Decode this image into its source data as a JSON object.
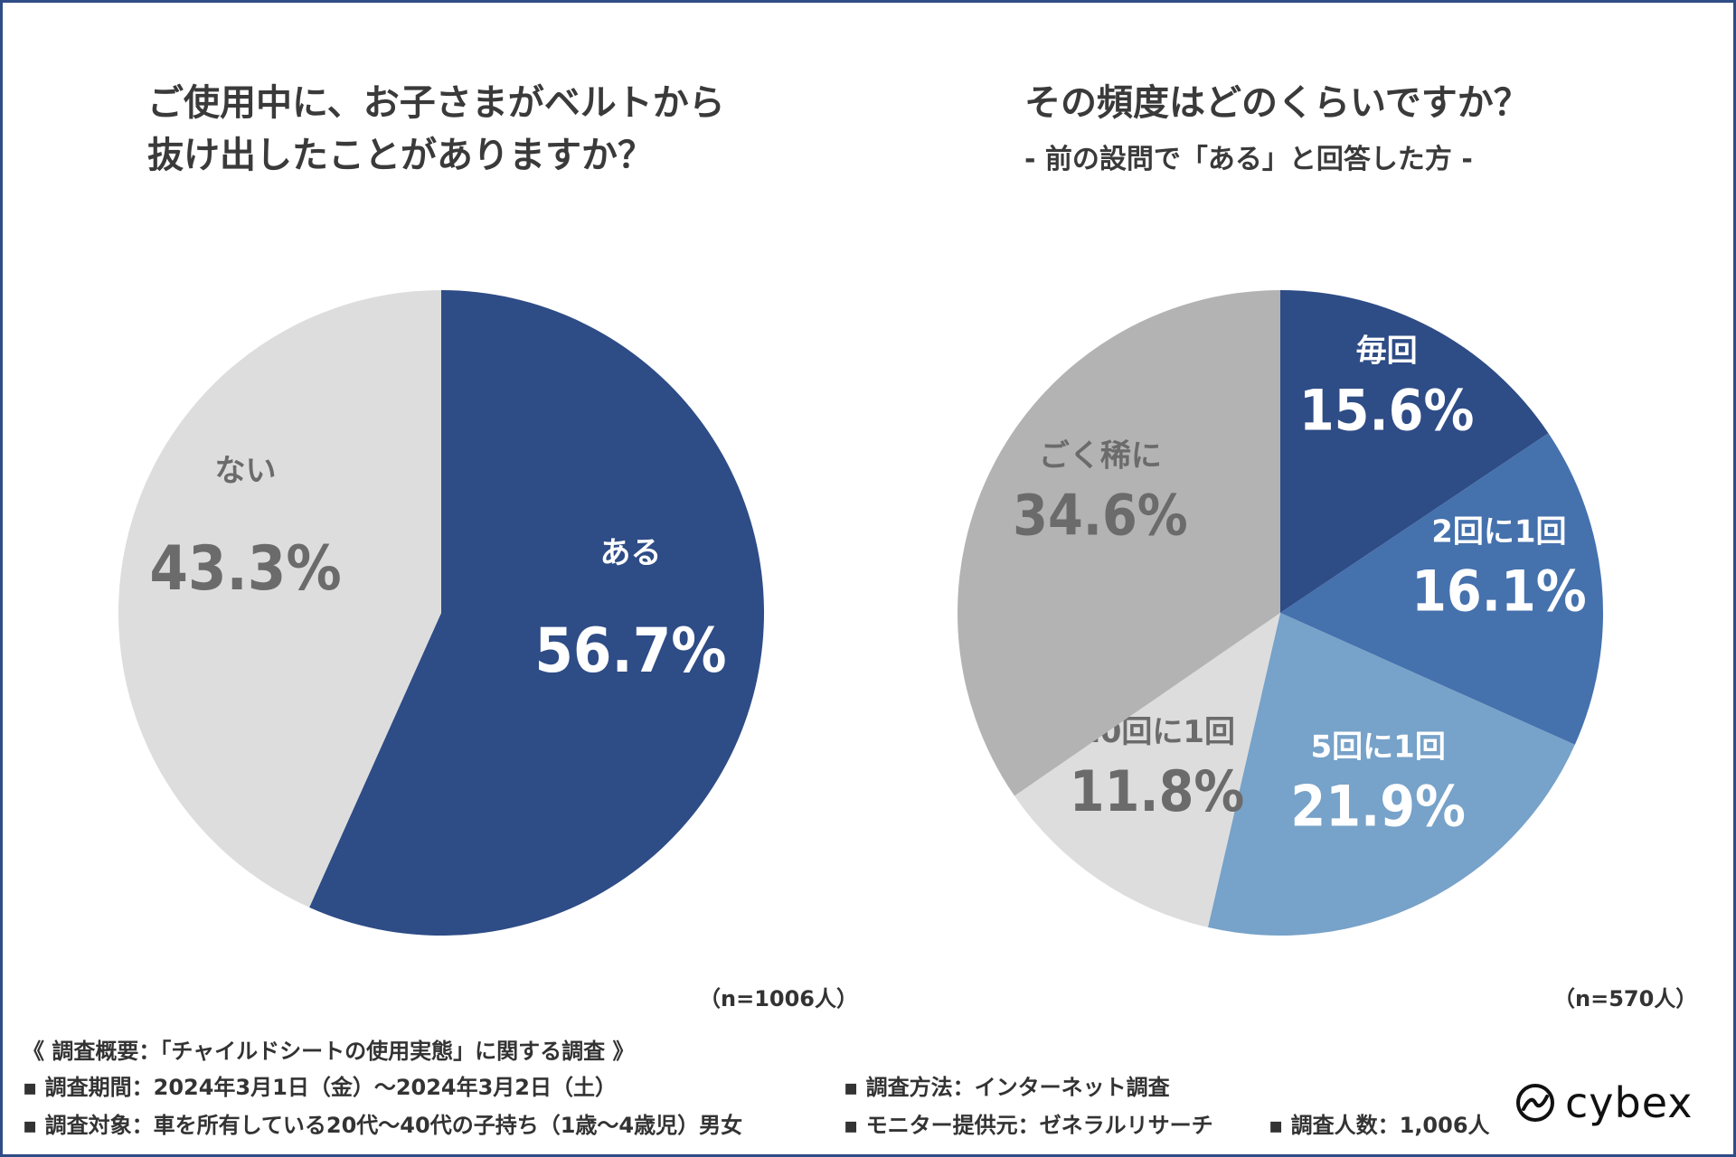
{
  "chart_data": [
    {
      "type": "pie",
      "title_lines": [
        "ご使用中に、お子さまがベルトから",
        "抜け出したことがありますか？"
      ],
      "slices": [
        {
          "label": "ある",
          "value": 56.7,
          "display": "56.7%",
          "color": "#2e4c86",
          "text_color": "#ffffff"
        },
        {
          "label": "ない",
          "value": 43.3,
          "display": "43.3%",
          "color": "#dddddd",
          "text_color": "#6b6b6b"
        }
      ],
      "sample": "（n=1006人）"
    },
    {
      "type": "pie",
      "title_lines": [
        "その頻度はどのくらいですか？"
      ],
      "subtitle": "-  前の設問で「ある」と回答した方  -",
      "slices": [
        {
          "label": "毎回",
          "value": 15.6,
          "display": "15.6%",
          "color": "#2e4c86",
          "text_color": "#ffffff"
        },
        {
          "label": "2回に1回",
          "value": 16.1,
          "display": "16.1%",
          "color": "#4571ad",
          "text_color": "#ffffff"
        },
        {
          "label": "5回に1回",
          "value": 21.9,
          "display": "21.9%",
          "color": "#77a2c9",
          "text_color": "#ffffff"
        },
        {
          "label": "10回に1回",
          "value": 11.8,
          "display": "11.8%",
          "color": "#dddddd",
          "text_color": "#6b6b6b"
        },
        {
          "label": "ごく稀に",
          "value": 34.6,
          "display": "34.6%",
          "color": "#b3b3b3",
          "text_color": "#6b6b6b"
        }
      ],
      "sample": "（n=570人）"
    }
  ],
  "footer": {
    "heading": "《 調査概要：「チャイルドシートの使用実態」に関する調査 》",
    "period": "▪ 調査期間：2024年3月1日（金）〜2024年3月2日（土）",
    "target": "▪ 調査対象：車を所有している20代〜40代の子持ち（1歳〜4歳児）男女",
    "method": "▪ 調査方法：インターネット調査",
    "monitor": "▪ モニター提供元：ゼネラルリサーチ",
    "count": "▪ 調査人数：1,006人"
  },
  "brand": {
    "name": "cybex",
    "icon": "cybex-logo-icon"
  }
}
